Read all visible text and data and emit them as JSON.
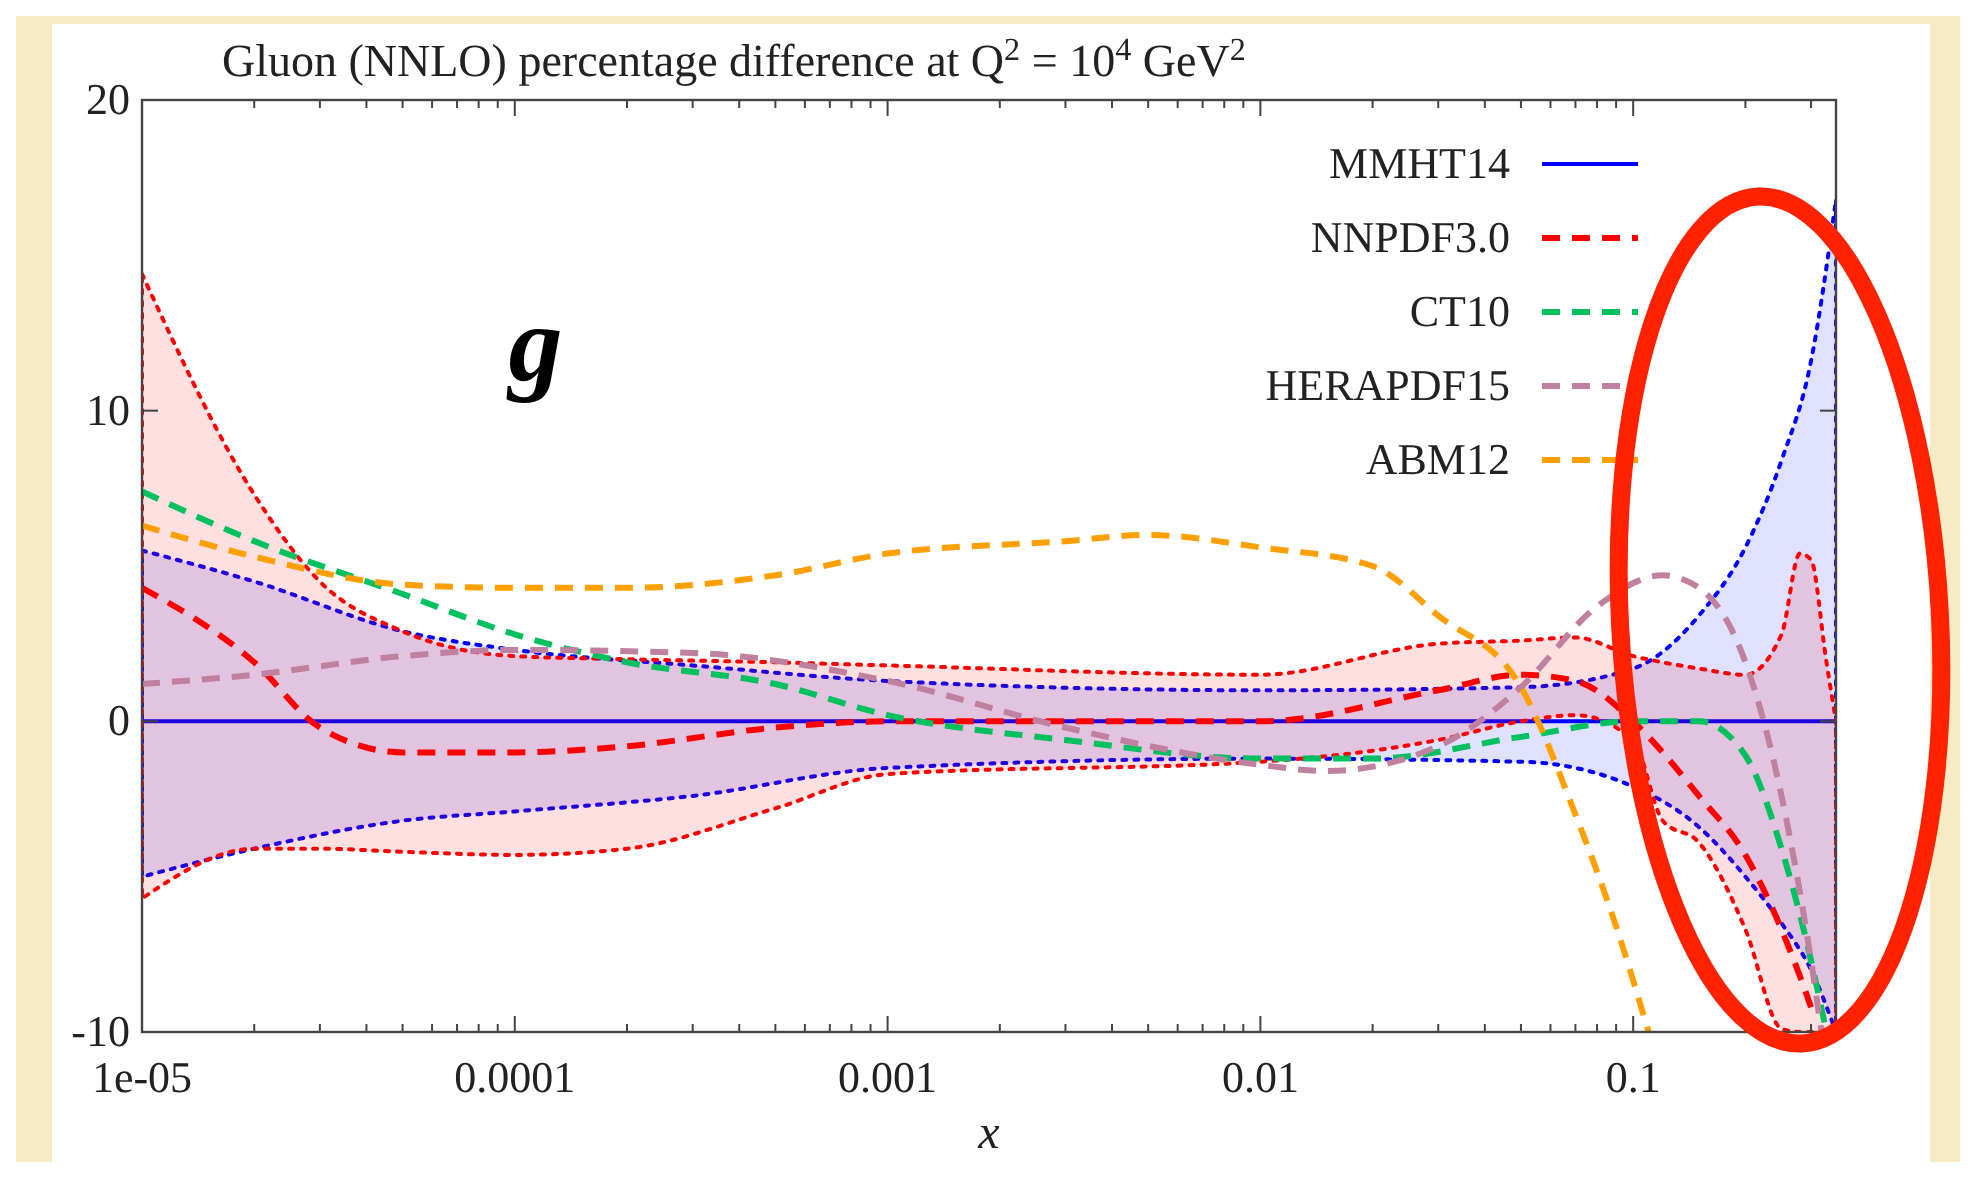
{
  "chart_data": {
    "type": "line",
    "title": "Gluon (NNLO) percentage difference at Q$^{2}$ = 10$^{4}$ GeV$^{2}$",
    "xlabel": "x",
    "log": "x",
    "xlim": [
      1e-05,
      0.35
    ],
    "ylim": [
      -10,
      20
    ],
    "xticks": [
      {
        "value": 1e-05,
        "label": "1e-05"
      },
      {
        "value": 2e-05,
        "label": null
      },
      {
        "value": 3e-05,
        "label": null
      },
      {
        "value": 4e-05,
        "label": null
      },
      {
        "value": 5e-05,
        "label": null
      },
      {
        "value": 6e-05,
        "label": null
      },
      {
        "value": 7e-05,
        "label": null
      },
      {
        "value": 8e-05,
        "label": null
      },
      {
        "value": 9e-05,
        "label": null
      },
      {
        "value": 0.0001,
        "label": "0.0001"
      },
      {
        "value": 0.0002,
        "label": null
      },
      {
        "value": 0.0003,
        "label": null
      },
      {
        "value": 0.0004,
        "label": null
      },
      {
        "value": 0.0005,
        "label": null
      },
      {
        "value": 0.0006,
        "label": null
      },
      {
        "value": 0.0007,
        "label": null
      },
      {
        "value": 0.0008,
        "label": null
      },
      {
        "value": 0.0009,
        "label": null
      },
      {
        "value": 0.001,
        "label": "0.001"
      },
      {
        "value": 0.002,
        "label": null
      },
      {
        "value": 0.003,
        "label": null
      },
      {
        "value": 0.004,
        "label": null
      },
      {
        "value": 0.005,
        "label": null
      },
      {
        "value": 0.006,
        "label": null
      },
      {
        "value": 0.007,
        "label": null
      },
      {
        "value": 0.008,
        "label": null
      },
      {
        "value": 0.009,
        "label": null
      },
      {
        "value": 0.01,
        "label": "0.01"
      },
      {
        "value": 0.02,
        "label": null
      },
      {
        "value": 0.03,
        "label": null
      },
      {
        "value": 0.04,
        "label": null
      },
      {
        "value": 0.05,
        "label": null
      },
      {
        "value": 0.06,
        "label": null
      },
      {
        "value": 0.07,
        "label": null
      },
      {
        "value": 0.08,
        "label": null
      },
      {
        "value": 0.09,
        "label": null
      },
      {
        "value": 0.1,
        "label": "0.1"
      },
      {
        "value": 0.2,
        "label": null
      },
      {
        "value": 0.3,
        "label": null
      }
    ],
    "yticks": [
      -10,
      0,
      10,
      20
    ],
    "grid": false,
    "legend": "top right",
    "annotations": [
      "g"
    ],
    "series": [
      {
        "name": "MMHT14",
        "color": "#0000ff",
        "line_style": "solid",
        "x": [
          1e-05,
          2e-05,
          5e-05,
          0.0001,
          0.0003,
          0.001,
          0.01,
          0.05,
          0.1,
          0.15,
          0.2,
          0.25,
          0.3,
          0.35
        ],
        "values": [
          0,
          0,
          0,
          0,
          0,
          0,
          0,
          0,
          0,
          0,
          0,
          0,
          0,
          0
        ],
        "lower": [
          -5.0,
          -4.1,
          -3.2,
          -2.9,
          -2.4,
          -1.5,
          -1.2,
          -1.3,
          -2.1,
          -3.4,
          -5.0,
          -6.5,
          -8.0,
          -10.0
        ],
        "upper": [
          5.5,
          4.5,
          2.9,
          2.3,
          1.8,
          1.3,
          1.0,
          1.1,
          1.7,
          3.4,
          5.6,
          8.4,
          11.6,
          16.8
        ]
      },
      {
        "name": "NNPDF3.0",
        "color": "#ff0000",
        "line_style": "dashed",
        "x": [
          1e-05,
          2e-05,
          3e-05,
          5e-05,
          0.0001,
          0.0002,
          0.0005,
          0.001,
          0.01,
          0.03,
          0.05,
          0.07,
          0.1,
          0.12,
          0.15,
          0.2,
          0.25,
          0.28,
          0.3,
          0.33,
          0.35
        ],
        "values": [
          4.3,
          1.9,
          -0.2,
          -1.0,
          -1.0,
          -0.8,
          -0.2,
          0,
          0,
          1.0,
          1.5,
          1.3,
          0,
          -1.0,
          -2.4,
          -4.3,
          -6.7,
          -8.2,
          -9.2,
          null,
          null
        ],
        "upper": [
          14.4,
          7.3,
          4.5,
          2.9,
          2.1,
          2.0,
          1.9,
          1.8,
          1.5,
          2.5,
          2.6,
          2.7,
          2.1,
          1.9,
          1.7,
          1.5,
          2.8,
          5.4,
          5.2,
          1.9,
          0
        ],
        "lower": [
          -5.7,
          -4.1,
          -4.1,
          -4.2,
          -4.3,
          -4.1,
          -2.8,
          -1.7,
          -1.3,
          -0.6,
          0,
          0.2,
          -0.6,
          -3.2,
          -3.9,
          -6.7,
          -9.9,
          -10,
          -10,
          -10,
          -10
        ]
      },
      {
        "name": "CT10",
        "color": "#00c060",
        "line_style": "dashed",
        "x": [
          1e-05,
          2e-05,
          5e-05,
          0.0001,
          0.0002,
          0.0005,
          0.001,
          0.003,
          0.01,
          0.02,
          0.05,
          0.1,
          0.15,
          0.2,
          0.25,
          0.3,
          0.33
        ],
        "values": [
          7.4,
          5.8,
          4.1,
          2.8,
          1.9,
          1.2,
          0.2,
          -0.6,
          -1.2,
          -1.2,
          -0.5,
          0,
          0,
          -1.1,
          -4.1,
          -7.7,
          -10
        ]
      },
      {
        "name": "HERAPDF15",
        "color": "#c080a0",
        "line_style": "dashed",
        "x": [
          1e-05,
          2e-05,
          5e-05,
          0.0001,
          0.0003,
          0.001,
          0.003,
          0.01,
          0.015,
          0.03,
          0.05,
          0.08,
          0.12,
          0.15,
          0.2,
          0.25,
          0.3,
          0.32
        ],
        "values": [
          1.2,
          1.5,
          2.1,
          2.3,
          2.2,
          1.3,
          -0.2,
          -1.4,
          -1.6,
          -0.8,
          1.1,
          3.7,
          4.7,
          4.3,
          1.9,
          -2.4,
          -7.7,
          -10
        ]
      },
      {
        "name": "ABM12",
        "color": "#ffa000",
        "line_style": "dashed",
        "x": [
          1e-05,
          2e-05,
          5e-05,
          0.0001,
          0.0002,
          0.0005,
          0.001,
          0.003,
          0.005,
          0.01,
          0.02,
          0.03,
          0.05,
          0.07,
          0.09,
          0.11
        ],
        "values": [
          6.3,
          5.3,
          4.4,
          4.3,
          4.3,
          4.7,
          5.4,
          5.8,
          6.0,
          5.6,
          5.0,
          3.4,
          1.1,
          -3.0,
          -6.6,
          -10
        ]
      }
    ]
  }
}
